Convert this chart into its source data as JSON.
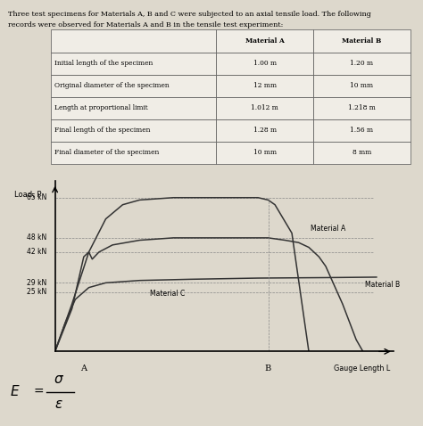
{
  "title_line1": "Three test specimens for Materials A, B and C were subjected to an axial tensile load. The following",
  "title_line2": "records were observed for Materials A and B in the tensile test experiment:",
  "table_headers": [
    "",
    "Material A",
    "Material B"
  ],
  "table_rows": [
    [
      "Initial length of the specimen",
      "1.00 m",
      "1.20 m"
    ],
    [
      "Original diameter of the specimen",
      "12 mm",
      "10 mm"
    ],
    [
      "Length at proportional limit",
      "1.012 m",
      "1.218 m"
    ],
    [
      "Final length of the specimen",
      "1.28 m",
      "1.56 m"
    ],
    [
      "Final diameter of the specimen",
      "10 mm",
      "8 mm"
    ]
  ],
  "ylabel": "Load, P",
  "xlabel": "Gauge Length L",
  "y_vals": [
    25,
    29,
    42,
    48,
    65
  ],
  "y_labels": [
    "25 kN",
    "29 kN",
    "42 kN",
    "48 kN",
    "65 kN"
  ],
  "x_label_A": "A",
  "x_label_B": "B",
  "label_material_A": "Material A",
  "label_material_B": "Material B",
  "label_material_C": "Material C",
  "formula_sigma": "σ",
  "formula_epsilon": "ε",
  "formula_E": "E",
  "bg_color": "#ddd8cc",
  "line_color": "#333333",
  "table_bg": "#f0ede6"
}
